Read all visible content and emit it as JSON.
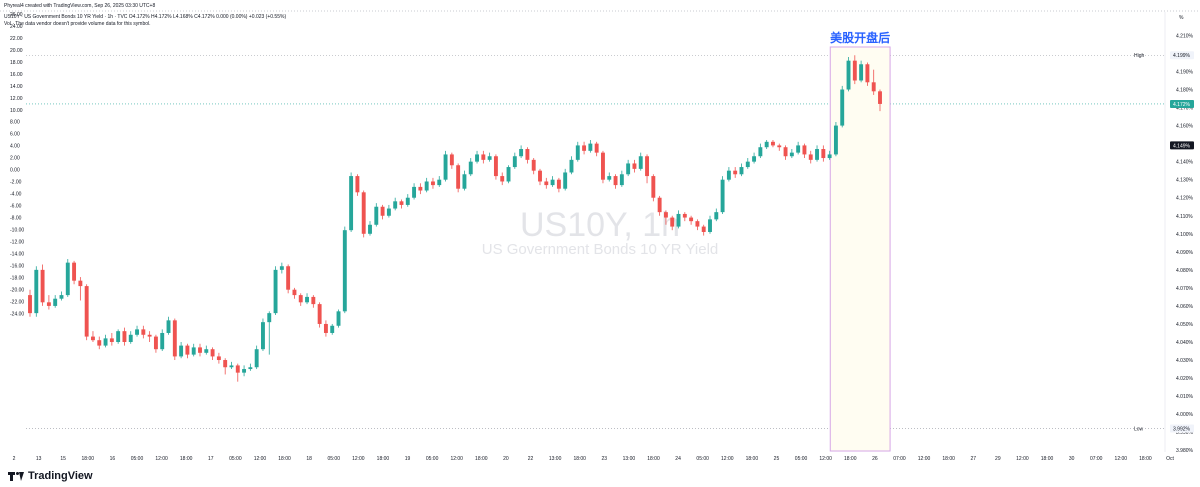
{
  "header": {
    "author": "Phyreal4 created with TradingView.com, Sep 26, 2025 03:30 UTC+8",
    "symbol_line": "US10Y · US Government Bonds 10 YR Yield · 1h · TVC  O4.172%  H4.172%  L4.168%  C4.172%  0.000 (0.00%)  +0.023 (+0.55%)",
    "vol_note": "Vol · The data vendor doesn't provide volume data for this symbol."
  },
  "watermark": {
    "symbol": "US10Y, 1h",
    "name": "US Government Bonds 10 YR Yield"
  },
  "annotation": {
    "text": "美股开盘后",
    "color": "#2962ff",
    "box_color": "#e1bee7"
  },
  "branding": {
    "logo": "TradingView",
    "logo_icon": "tradingview-logo-icon"
  },
  "colors": {
    "up": "#26a69a",
    "down": "#ef5350",
    "grid": "#b2b5be",
    "dotted": "#9598a1",
    "text": "#131722"
  },
  "chart_data": {
    "type": "candlestick",
    "left_axis": {
      "ticks": [
        "26.00",
        "24.00",
        "22.00",
        "20.00",
        "18.00",
        "16.00",
        "14.00",
        "12.00",
        "10.00",
        "8.00",
        "6.00",
        "4.00",
        "2.00",
        "0.00",
        "-2.00",
        "-4.00",
        "-6.00",
        "-8.00",
        "-10.00",
        "-12.00",
        "-14.00",
        "-16.00",
        "-18.00",
        "-20.00",
        "-22.00",
        "-24.00"
      ]
    },
    "right_axis": {
      "unit": "%",
      "ticks": [
        "4.210%",
        "4.200%",
        "4.190%",
        "4.180%",
        "4.170%",
        "4.160%",
        "4.150%",
        "4.140%",
        "4.130%",
        "4.120%",
        "4.110%",
        "4.100%",
        "4.090%",
        "4.080%",
        "4.070%",
        "4.060%",
        "4.050%",
        "4.040%",
        "4.030%",
        "4.020%",
        "4.010%",
        "4.000%",
        "3.990%",
        "3.980%"
      ],
      "high_label": "High",
      "high_value": "4.199%",
      "low_label": "Low",
      "low_value": "3.992%",
      "last_value": "4.172%",
      "marker_value": "4.149%"
    },
    "x_axis": {
      "ticks": [
        "2",
        "13",
        "15",
        "18:00",
        "16",
        "05:00",
        "12:00",
        "18:00",
        "17",
        "05:00",
        "12:00",
        "18:00",
        "18",
        "05:00",
        "12:00",
        "18:00",
        "19",
        "05:00",
        "12:00",
        "18:00",
        "20",
        "22",
        "13:00",
        "18:00",
        "23",
        "13:00",
        "18:00",
        "24",
        "05:00",
        "12:00",
        "18:00",
        "25",
        "05:00",
        "12:00",
        "18:00",
        "26",
        "07:00",
        "12:00",
        "18:00",
        "27",
        "29",
        "12:00",
        "18:00",
        "30",
        "07:00",
        "12:00",
        "18:00",
        "Oct"
      ]
    },
    "ylim": [
      3.979,
      4.213
    ],
    "candles": [
      [
        4.066,
        4.056,
        4.069,
        4.054
      ],
      [
        4.056,
        4.08,
        4.082,
        4.054
      ],
      [
        4.08,
        4.062,
        4.083,
        4.06
      ],
      [
        4.062,
        4.06,
        4.066,
        4.058
      ],
      [
        4.06,
        4.064,
        4.066,
        4.059
      ],
      [
        4.064,
        4.066,
        4.068,
        4.063
      ],
      [
        4.066,
        4.084,
        4.086,
        4.065
      ],
      [
        4.084,
        4.074,
        4.085,
        4.072
      ],
      [
        4.074,
        4.071,
        4.076,
        4.063
      ],
      [
        4.071,
        4.043,
        4.072,
        4.041
      ],
      [
        4.043,
        4.041,
        4.046,
        4.04
      ],
      [
        4.041,
        4.038,
        4.043,
        4.036
      ],
      [
        4.038,
        4.042,
        4.044,
        4.037
      ],
      [
        4.042,
        4.04,
        4.045,
        4.038
      ],
      [
        4.04,
        4.046,
        4.047,
        4.039
      ],
      [
        4.046,
        4.04,
        4.048,
        4.038
      ],
      [
        4.04,
        4.044,
        4.046,
        4.039
      ],
      [
        4.044,
        4.047,
        4.049,
        4.043
      ],
      [
        4.047,
        4.044,
        4.049,
        4.042
      ],
      [
        4.044,
        4.043,
        4.046,
        4.04
      ],
      [
        4.043,
        4.036,
        4.044,
        4.034
      ],
      [
        4.036,
        4.045,
        4.047,
        4.035
      ],
      [
        4.045,
        4.052,
        4.054,
        4.044
      ],
      [
        4.052,
        4.032,
        4.053,
        4.03
      ],
      [
        4.032,
        4.038,
        4.04,
        4.031
      ],
      [
        4.038,
        4.033,
        4.039,
        4.031
      ],
      [
        4.033,
        4.037,
        4.039,
        4.032
      ],
      [
        4.037,
        4.034,
        4.039,
        4.032
      ],
      [
        4.034,
        4.036,
        4.038,
        4.033
      ],
      [
        4.036,
        4.032,
        4.037,
        4.03
      ],
      [
        4.032,
        4.03,
        4.034,
        4.028
      ],
      [
        4.03,
        4.026,
        4.031,
        4.022
      ],
      [
        4.026,
        4.027,
        4.029,
        4.025
      ],
      [
        4.027,
        4.023,
        4.028,
        4.018
      ],
      [
        4.023,
        4.025,
        4.027,
        4.021
      ],
      [
        4.025,
        4.026,
        4.028,
        4.024
      ],
      [
        4.026,
        4.036,
        4.038,
        4.025
      ],
      [
        4.036,
        4.051,
        4.053,
        4.035
      ],
      [
        4.051,
        4.056,
        4.057,
        4.033
      ],
      [
        4.056,
        4.08,
        4.082,
        4.055
      ],
      [
        4.08,
        4.082,
        4.084,
        4.078
      ],
      [
        4.082,
        4.069,
        4.083,
        4.067
      ],
      [
        4.069,
        4.066,
        4.07,
        4.064
      ],
      [
        4.066,
        4.062,
        4.067,
        4.06
      ],
      [
        4.062,
        4.065,
        4.067,
        4.061
      ],
      [
        4.065,
        4.061,
        4.066,
        4.059
      ],
      [
        4.061,
        4.05,
        4.062,
        4.048
      ],
      [
        4.05,
        4.045,
        4.052,
        4.043
      ],
      [
        4.045,
        4.049,
        4.05,
        4.044
      ],
      [
        4.049,
        4.057,
        4.058,
        4.048
      ],
      [
        4.057,
        4.102,
        4.104,
        4.056
      ],
      [
        4.102,
        4.132,
        4.134,
        4.101
      ],
      [
        4.132,
        4.123,
        4.133,
        4.121
      ],
      [
        4.123,
        4.1,
        4.124,
        4.098
      ],
      [
        4.1,
        4.105,
        4.107,
        4.099
      ],
      [
        4.105,
        4.115,
        4.117,
        4.104
      ],
      [
        4.115,
        4.11,
        4.116,
        4.108
      ],
      [
        4.11,
        4.114,
        4.116,
        4.109
      ],
      [
        4.114,
        4.118,
        4.12,
        4.113
      ],
      [
        4.118,
        4.116,
        4.119,
        4.114
      ],
      [
        4.116,
        4.12,
        4.122,
        4.115
      ],
      [
        4.12,
        4.126,
        4.128,
        4.119
      ],
      [
        4.126,
        4.124,
        4.128,
        4.122
      ],
      [
        4.124,
        4.129,
        4.131,
        4.123
      ],
      [
        4.129,
        4.127,
        4.131,
        4.125
      ],
      [
        4.127,
        4.13,
        4.132,
        4.126
      ],
      [
        4.13,
        4.144,
        4.146,
        4.129
      ],
      [
        4.144,
        4.138,
        4.145,
        4.136
      ],
      [
        4.138,
        4.125,
        4.139,
        4.123
      ],
      [
        4.125,
        4.133,
        4.135,
        4.124
      ],
      [
        4.133,
        4.14,
        4.142,
        4.132
      ],
      [
        4.14,
        4.144,
        4.146,
        4.139
      ],
      [
        4.144,
        4.141,
        4.146,
        4.139
      ],
      [
        4.141,
        4.143,
        4.145,
        4.14
      ],
      [
        4.143,
        4.132,
        4.144,
        4.13
      ],
      [
        4.132,
        4.129,
        4.134,
        4.127
      ],
      [
        4.129,
        4.137,
        4.138,
        4.128
      ],
      [
        4.137,
        4.143,
        4.145,
        4.136
      ],
      [
        4.143,
        4.147,
        4.149,
        4.142
      ],
      [
        4.147,
        4.141,
        4.148,
        4.139
      ],
      [
        4.141,
        4.135,
        4.142,
        4.133
      ],
      [
        4.135,
        4.129,
        4.136,
        4.127
      ],
      [
        4.129,
        4.127,
        4.131,
        4.125
      ],
      [
        4.127,
        4.13,
        4.132,
        4.126
      ],
      [
        4.13,
        4.125,
        4.131,
        4.123
      ],
      [
        4.125,
        4.134,
        4.136,
        4.124
      ],
      [
        4.134,
        4.141,
        4.143,
        4.133
      ],
      [
        4.141,
        4.149,
        4.151,
        4.14
      ],
      [
        4.149,
        4.146,
        4.151,
        4.144
      ],
      [
        4.146,
        4.15,
        4.152,
        4.145
      ],
      [
        4.15,
        4.145,
        4.151,
        4.143
      ],
      [
        4.145,
        4.13,
        4.146,
        4.128
      ],
      [
        4.13,
        4.132,
        4.134,
        4.129
      ],
      [
        4.132,
        4.127,
        4.133,
        4.125
      ],
      [
        4.127,
        4.133,
        4.135,
        4.126
      ],
      [
        4.133,
        4.139,
        4.141,
        4.132
      ],
      [
        4.139,
        4.136,
        4.141,
        4.134
      ],
      [
        4.136,
        4.143,
        4.145,
        4.135
      ],
      [
        4.143,
        4.132,
        4.144,
        4.128
      ],
      [
        4.132,
        4.12,
        4.133,
        4.118
      ],
      [
        4.12,
        4.112,
        4.121,
        4.11
      ],
      [
        4.112,
        4.109,
        4.113,
        4.105
      ],
      [
        4.109,
        4.104,
        4.11,
        4.102
      ],
      [
        4.104,
        4.111,
        4.113,
        4.103
      ],
      [
        4.111,
        4.109,
        4.112,
        4.107
      ],
      [
        4.109,
        4.107,
        4.11,
        4.105
      ],
      [
        4.107,
        4.104,
        4.108,
        4.102
      ],
      [
        4.104,
        4.101,
        4.105,
        4.099
      ],
      [
        4.101,
        4.108,
        4.11,
        4.1
      ],
      [
        4.108,
        4.112,
        4.114,
        4.107
      ],
      [
        4.112,
        4.13,
        4.132,
        4.111
      ],
      [
        4.13,
        4.135,
        4.137,
        4.129
      ],
      [
        4.135,
        4.133,
        4.137,
        4.131
      ],
      [
        4.133,
        4.137,
        4.139,
        4.132
      ],
      [
        4.137,
        4.14,
        4.142,
        4.136
      ],
      [
        4.14,
        4.143,
        4.145,
        4.139
      ],
      [
        4.143,
        4.148,
        4.15,
        4.142
      ],
      [
        4.148,
        4.151,
        4.152,
        4.147
      ],
      [
        4.151,
        4.149,
        4.152,
        4.148
      ],
      [
        4.149,
        4.148,
        4.15,
        4.146
      ],
      [
        4.148,
        4.143,
        4.149,
        4.141
      ],
      [
        4.143,
        4.145,
        4.147,
        4.142
      ],
      [
        4.145,
        4.149,
        4.151,
        4.144
      ],
      [
        4.149,
        4.144,
        4.15,
        4.142
      ],
      [
        4.144,
        4.141,
        4.146,
        4.139
      ],
      [
        4.141,
        4.147,
        4.149,
        4.14
      ],
      [
        4.147,
        4.142,
        4.149,
        4.14
      ],
      [
        4.142,
        4.144,
        4.146,
        4.141
      ],
      [
        4.144,
        4.16,
        4.162,
        4.143
      ],
      [
        4.16,
        4.18,
        4.182,
        4.159
      ],
      [
        4.18,
        4.196,
        4.198,
        4.179
      ],
      [
        4.196,
        4.185,
        4.199,
        4.183
      ],
      [
        4.185,
        4.194,
        4.196,
        4.184
      ],
      [
        4.194,
        4.184,
        4.195,
        4.182
      ],
      [
        4.184,
        4.179,
        4.191,
        4.177
      ],
      [
        4.179,
        4.172,
        4.18,
        4.168
      ]
    ]
  }
}
